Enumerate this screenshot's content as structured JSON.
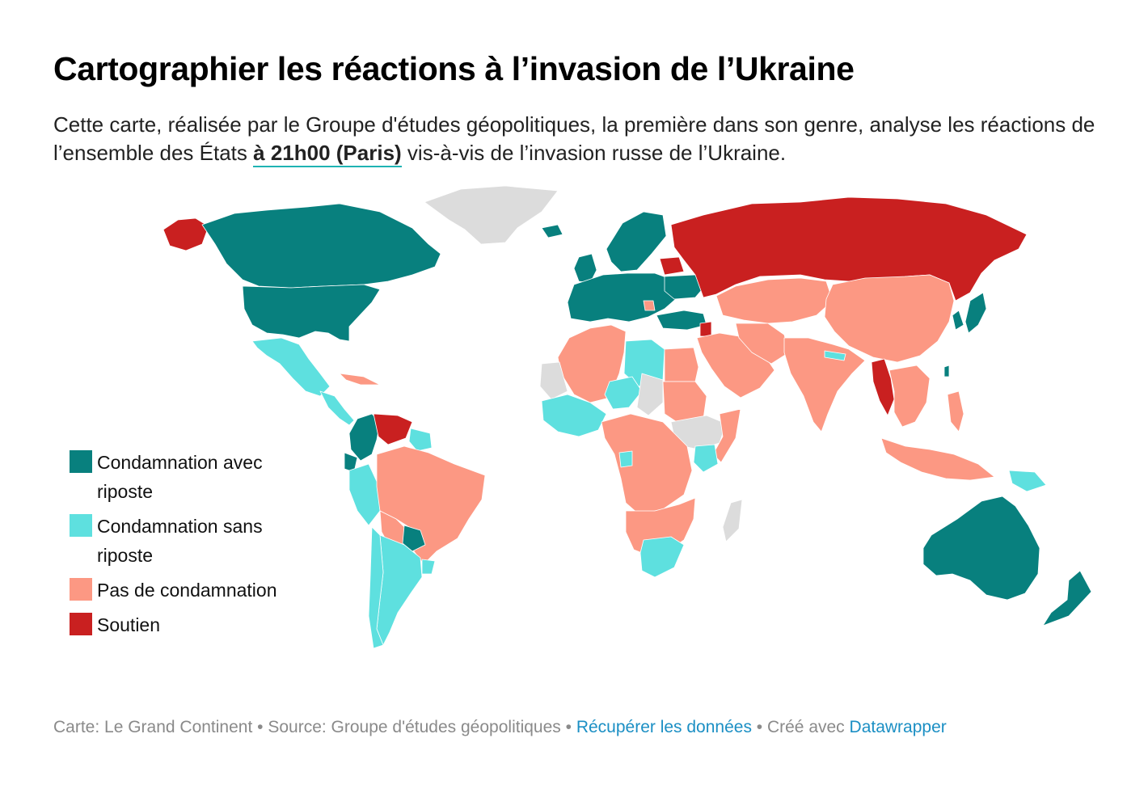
{
  "title": "Cartographier les réactions à l’invasion de l’Ukraine",
  "subtitle": {
    "line1": "Cette carte, réalisée par le Groupe d'études géopolitiques, la première dans son genre, analyse les réactions de l’ensemble des États ",
    "highlight": "à 21h00 (Paris)",
    "line2": " vis-à-vis de l’invasion russe de l’Ukraine."
  },
  "legend": [
    {
      "label": "Condamnation avec riposte",
      "color": "#08807e"
    },
    {
      "label": "Condamnation sans riposte",
      "color": "#5ee0df"
    },
    {
      "label": "Pas de condamnation",
      "color": "#fc9883"
    },
    {
      "label": "Soutien",
      "color": "#c92020"
    }
  ],
  "no_data_color": "#dcdcdc",
  "footer": {
    "credit": "Carte: Le Grand Continent",
    "sep1": " • ",
    "source": "Source: Groupe d'études géopolitiques",
    "sep2": " • ",
    "download": "Récupérer les données",
    "sep3": " • Créé avec ",
    "tool": "Datawrapper"
  }
}
